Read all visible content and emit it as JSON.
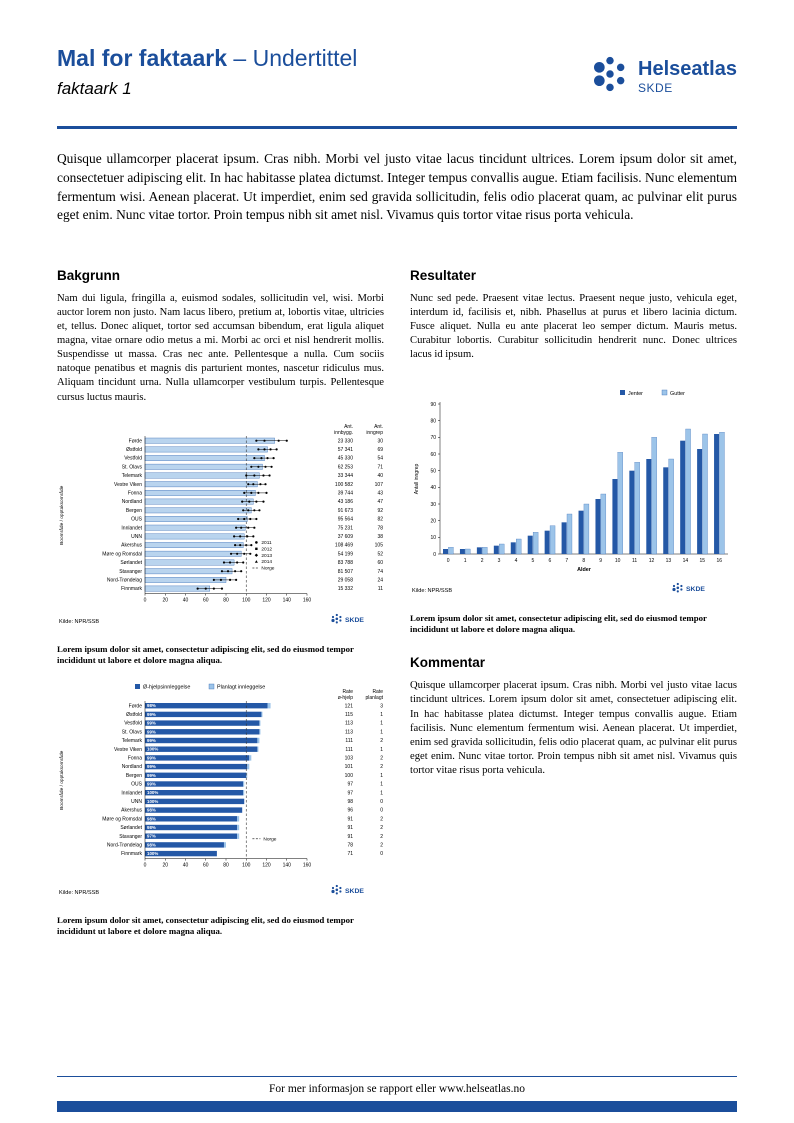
{
  "colors": {
    "brand": "#1B4E9B",
    "bar_dark": "#2458A6",
    "bar_light": "#9CC4E9",
    "bar_pale": "#B9D4EE",
    "axis": "#444444"
  },
  "page": {
    "header": {
      "title": "Mal for faktaark",
      "subtitle": "– Undertittel",
      "doc_label": "faktaark 1",
      "logo": {
        "name": "Helseatlas",
        "org": "SKDE"
      }
    },
    "intro": "Quisque ullamcorper placerat ipsum. Cras nibh. Morbi vel justo vitae lacus tincidunt ultrices. Lorem ipsum dolor sit amet, consectetuer adipiscing elit. In hac habitasse platea dictumst. Integer tempus convallis augue. Etiam facilisis. Nunc elementum fermentum wisi. Aenean placerat. Ut imperdiet, enim sed gravida sollicitudin, felis odio placerat quam, ac pulvinar elit purus eget enim. Nunc vitae tortor. Proin tempus nibh sit amet nisl. Vivamus quis tortor vitae risus porta vehicula.",
    "sections": {
      "bakgrunn": {
        "heading": "Bakgrunn",
        "body": "Nam dui ligula, fringilla a, euismod sodales, sollicitudin vel, wisi. Morbi auctor lorem non justo. Nam lacus libero, pretium at, lobortis vitae, ultricies et, tellus. Donec aliquet, tortor sed accumsan bibendum, erat ligula aliquet magna, vitae ornare odio metus a mi. Morbi ac orci et nisl hendrerit mollis. Suspendisse ut massa. Cras nec ante. Pellentesque a nulla. Cum sociis natoque penatibus et magnis dis parturient montes, nascetur ridiculus mus. Aliquam tincidunt urna. Nulla ullamcorper vestibulum turpis. Pellentesque cursus luctus mauris."
      },
      "resultater": {
        "heading": "Resultater",
        "body": "Nunc sed pede. Praesent vitae lectus. Praesent neque justo, vehicula eget, interdum id, facilisis et, nibh. Phasellus at purus et libero lacinia dictum. Fusce aliquet. Nulla eu ante placerat leo semper dictum. Mauris metus. Curabitur lobortis. Curabitur sollicitudin hendrerit nunc. Donec ultrices lacus id ipsum."
      },
      "kommentar": {
        "heading": "Kommentar",
        "body": "Quisque ullamcorper placerat ipsum. Cras nibh. Morbi vel justo vitae lacus tincidunt ultrices. Lorem ipsum dolor sit amet, consectetuer adipiscing elit. In hac habitasse platea dictumst. Integer tempus convallis augue. Etiam facilisis. Nunc elementum fermentum wisi. Aenean placerat. Ut imperdiet, enim sed gravida sollicitudin, felis odio placerat quam, ac pulvinar elit purus eget enim. Nunc vitae tortor. Proin tempus nibh sit amet nisl. Vivamus quis tortor vitae risus porta vehicula."
      }
    },
    "captions": {
      "chart1": "Lorem ipsum dolor sit amet, consectetur adipiscing elit, sed do eiusmod tempor incididunt ut labore et dolore magna aliqua.",
      "chart2": "Lorem ipsum dolor sit amet, consectetur adipiscing elit, sed do eiusmod tempor incididunt ut labore et dolore magna aliqua.",
      "chart3": "Lorem ipsum dolor sit amet, consectetur adipiscing elit, sed do eiusmod tempor incididunt ut labore et dolore magna aliqua."
    },
    "footer": {
      "text": "For mer informasjon se rapport eller www.helseatlas.no"
    }
  },
  "chart_data": [
    {
      "id": "rates-by-area",
      "type": "bar",
      "orientation": "horizontal",
      "ylabel": "Boområde / opptaksområde",
      "source": "Kilde: NPR/SSB",
      "skde": "SKDE",
      "xlim": [
        0,
        160
      ],
      "xticks": [
        0,
        20,
        40,
        60,
        80,
        100,
        120,
        140,
        160
      ],
      "col_headers": [
        [
          "Ant.",
          "innbygg."
        ],
        [
          "Ant.",
          "inngrep"
        ]
      ],
      "legend_years": [
        "2011",
        "2012",
        "2013",
        "2014"
      ],
      "legend_norge": "Norge",
      "norge_ref": 100,
      "rows": [
        {
          "label": "Førde",
          "value": 128,
          "points": [
            110,
            118,
            132,
            140
          ],
          "innbygg": "23 330",
          "inngrep": "30"
        },
        {
          "label": "Østfold",
          "value": 121,
          "points": [
            112,
            118,
            124,
            130
          ],
          "innbygg": "57 341",
          "inngrep": "69"
        },
        {
          "label": "Vestfold",
          "value": 118,
          "points": [
            108,
            115,
            121,
            127
          ],
          "innbygg": "45 330",
          "inngrep": "54"
        },
        {
          "label": "St. Olavs",
          "value": 116,
          "points": [
            105,
            112,
            119,
            125
          ],
          "innbygg": "62 253",
          "inngrep": "71"
        },
        {
          "label": "Telemark",
          "value": 113,
          "points": [
            100,
            108,
            117,
            123
          ],
          "innbygg": "33 344",
          "inngrep": "40"
        },
        {
          "label": "Vestre Viken",
          "value": 111,
          "points": [
            102,
            107,
            114,
            119
          ],
          "innbygg": "100 582",
          "inngrep": "107"
        },
        {
          "label": "Fonna",
          "value": 109,
          "points": [
            98,
            105,
            112,
            120
          ],
          "innbygg": "39 744",
          "inngrep": "43"
        },
        {
          "label": "Nordland",
          "value": 107,
          "points": [
            96,
            103,
            110,
            117
          ],
          "innbygg": "43 186",
          "inngrep": "47"
        },
        {
          "label": "Bergen",
          "value": 105,
          "points": [
            97,
            102,
            108,
            113
          ],
          "innbygg": "91 673",
          "inngrep": "92"
        },
        {
          "label": "OUS",
          "value": 101,
          "points": [
            92,
            98,
            104,
            110
          ],
          "innbygg": "95 564",
          "inngrep": "82"
        },
        {
          "label": "Innlandet",
          "value": 99,
          "points": [
            90,
            95,
            102,
            108
          ],
          "innbygg": "75 231",
          "inngrep": "78"
        },
        {
          "label": "UNN",
          "value": 98,
          "points": [
            88,
            94,
            101,
            107
          ],
          "innbygg": "37 609",
          "inngrep": "38"
        },
        {
          "label": "Akershus",
          "value": 97,
          "points": [
            89,
            94,
            100,
            105
          ],
          "innbygg": "108 469",
          "inngrep": "105"
        },
        {
          "label": "Møre og Romsdal",
          "value": 95,
          "points": [
            85,
            91,
            98,
            104
          ],
          "innbygg": "54 199",
          "inngrep": "52"
        },
        {
          "label": "Sørlandet",
          "value": 88,
          "points": [
            78,
            84,
            91,
            97
          ],
          "innbygg": "83 788",
          "inngrep": "60"
        },
        {
          "label": "Stavanger",
          "value": 86,
          "points": [
            76,
            82,
            89,
            95
          ],
          "innbygg": "81 507",
          "inngrep": "74"
        },
        {
          "label": "Nord-Trøndelag",
          "value": 80,
          "points": [
            68,
            75,
            84,
            90
          ],
          "innbygg": "29 058",
          "inngrep": "24"
        },
        {
          "label": "Finnmark",
          "value": 64,
          "points": [
            52,
            60,
            68,
            76
          ],
          "innbygg": "15 332",
          "inngrep": "11"
        }
      ]
    },
    {
      "id": "admission-type",
      "type": "bar",
      "orientation": "horizontal",
      "ylabel": "Boområde / opptaksområde",
      "source": "Kilde: NPR/SSB",
      "skde": "SKDE",
      "xlim": [
        0,
        160
      ],
      "xticks": [
        0,
        20,
        40,
        60,
        80,
        100,
        120,
        140,
        160
      ],
      "legend": [
        "Ø-hjelpsinnleggelse",
        "Planlagt innleggelse"
      ],
      "legend_norge": "Norge",
      "norge_ref": 100,
      "col_headers": [
        [
          "Rate",
          "ø-hjelp"
        ],
        [
          "Rate",
          "planlagt"
        ]
      ],
      "rows": [
        {
          "label": "Førde",
          "pct": "98%",
          "ohjelp": 121,
          "planlagt": 3
        },
        {
          "label": "Østfold",
          "pct": "99%",
          "ohjelp": 115,
          "planlagt": 1
        },
        {
          "label": "Vestfold",
          "pct": "99%",
          "ohjelp": 113,
          "planlagt": 1
        },
        {
          "label": "St. Olavs",
          "pct": "99%",
          "ohjelp": 113,
          "planlagt": 1
        },
        {
          "label": "Telemark",
          "pct": "99%",
          "ohjelp": 111,
          "planlagt": 2
        },
        {
          "label": "Vestre Viken",
          "pct": "100%",
          "ohjelp": 111,
          "planlagt": 1
        },
        {
          "label": "Fonna",
          "pct": "99%",
          "ohjelp": 103,
          "planlagt": 2
        },
        {
          "label": "Nordland",
          "pct": "99%",
          "ohjelp": 101,
          "planlagt": 2
        },
        {
          "label": "Bergen",
          "pct": "99%",
          "ohjelp": 100,
          "planlagt": 1
        },
        {
          "label": "OUS",
          "pct": "99%",
          "ohjelp": 97,
          "planlagt": 1
        },
        {
          "label": "Innlandet",
          "pct": "100%",
          "ohjelp": 97,
          "planlagt": 1
        },
        {
          "label": "UNN",
          "pct": "100%",
          "ohjelp": 98,
          "planlagt": 0
        },
        {
          "label": "Akershus",
          "pct": "98%",
          "ohjelp": 96,
          "planlagt": 0
        },
        {
          "label": "Møre og Romsdal",
          "pct": "98%",
          "ohjelp": 91,
          "planlagt": 2
        },
        {
          "label": "Sørlandet",
          "pct": "98%",
          "ohjelp": 91,
          "planlagt": 2
        },
        {
          "label": "Stavanger",
          "pct": "97%",
          "ohjelp": 91,
          "planlagt": 2
        },
        {
          "label": "Nord-Trøndelag",
          "pct": "98%",
          "ohjelp": 78,
          "planlagt": 2
        },
        {
          "label": "Finnmark",
          "pct": "100%",
          "ohjelp": 71,
          "planlagt": 0
        }
      ]
    },
    {
      "id": "age-distribution",
      "type": "bar",
      "orientation": "vertical",
      "xlabel": "Alder",
      "ylabel": "Antall inngrep",
      "source": "Kilde: NPR/SSB",
      "skde": "SKDE",
      "ylim": [
        0,
        90
      ],
      "yticks": [
        0,
        10,
        20,
        30,
        40,
        50,
        60,
        70,
        80,
        90
      ],
      "x": [
        0,
        1,
        2,
        3,
        4,
        5,
        6,
        7,
        8,
        9,
        10,
        11,
        12,
        13,
        14,
        15,
        16
      ],
      "series": [
        {
          "name": "Jenter",
          "values": [
            3,
            3,
            4,
            5,
            7,
            11,
            14,
            19,
            26,
            33,
            45,
            50,
            57,
            52,
            68,
            63,
            72
          ]
        },
        {
          "name": "Gutter",
          "values": [
            4,
            3,
            4,
            6,
            9,
            13,
            17,
            24,
            30,
            36,
            61,
            55,
            70,
            57,
            75,
            72,
            73
          ]
        }
      ]
    }
  ]
}
